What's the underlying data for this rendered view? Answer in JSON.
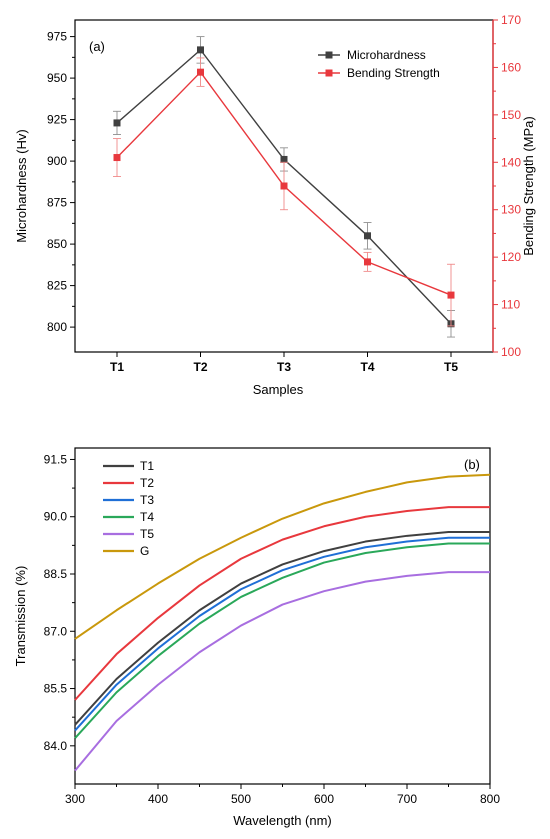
{
  "chart_data": [
    {
      "type": "line",
      "panel_label": "(a)",
      "xlabel": "Samples",
      "ylabel": "Microhardness (Hv)",
      "ylabel_right": "Bending Strength (MPa)",
      "categories": [
        "T1",
        "T2",
        "T3",
        "T4",
        "T5"
      ],
      "ylim": [
        785,
        985
      ],
      "yticks": [
        800,
        825,
        850,
        875,
        900,
        925,
        950,
        975
      ],
      "ylim_right": [
        100,
        170
      ],
      "yticks_right": [
        100,
        110,
        120,
        130,
        140,
        150,
        160,
        170
      ],
      "legend_position": "top-right",
      "grid": false,
      "series": [
        {
          "name": "Microhardness",
          "axis": "left",
          "color": "#404040",
          "marker": "square",
          "values": [
            923,
            967,
            901,
            855,
            802
          ],
          "errors": [
            7,
            8,
            7,
            8,
            8
          ]
        },
        {
          "name": "Bending Strength",
          "axis": "right",
          "color": "#e8383d",
          "marker": "square",
          "values": [
            141,
            159,
            135,
            119,
            112
          ],
          "errors": [
            4,
            3,
            5,
            2,
            6.5
          ]
        }
      ]
    },
    {
      "type": "line",
      "panel_label": "(b)",
      "xlabel": "Wavelength (nm)",
      "ylabel": "Transmission (%)",
      "xlim": [
        300,
        800
      ],
      "xticks": [
        300,
        400,
        500,
        600,
        700,
        800
      ],
      "ylim": [
        83.0,
        91.8
      ],
      "yticks": [
        84.0,
        85.5,
        87.0,
        88.5,
        90.0,
        91.5
      ],
      "legend_position": "top-left",
      "grid": false,
      "x": [
        300,
        350,
        400,
        450,
        500,
        550,
        600,
        650,
        700,
        750,
        800
      ],
      "series": [
        {
          "name": "T1",
          "color": "#404040",
          "values": [
            84.55,
            85.75,
            86.7,
            87.55,
            88.25,
            88.75,
            89.1,
            89.35,
            89.5,
            89.6,
            89.6
          ]
        },
        {
          "name": "T2",
          "color": "#e8383d",
          "values": [
            85.2,
            86.4,
            87.35,
            88.2,
            88.9,
            89.4,
            89.75,
            90.0,
            90.15,
            90.25,
            90.25
          ]
        },
        {
          "name": "T3",
          "color": "#1f6fd6",
          "values": [
            84.4,
            85.6,
            86.55,
            87.4,
            88.1,
            88.6,
            88.95,
            89.2,
            89.35,
            89.45,
            89.45
          ]
        },
        {
          "name": "T4",
          "color": "#2aa85a",
          "values": [
            84.2,
            85.4,
            86.35,
            87.2,
            87.9,
            88.4,
            88.8,
            89.05,
            89.2,
            89.3,
            89.3
          ]
        },
        {
          "name": "T5",
          "color": "#a86ee0",
          "values": [
            83.35,
            84.65,
            85.6,
            86.45,
            87.15,
            87.7,
            88.05,
            88.3,
            88.45,
            88.55,
            88.55
          ]
        },
        {
          "name": "G",
          "color": "#c9980c",
          "values": [
            86.8,
            87.55,
            88.25,
            88.9,
            89.45,
            89.95,
            90.35,
            90.65,
            90.9,
            91.05,
            91.1
          ]
        }
      ]
    }
  ]
}
